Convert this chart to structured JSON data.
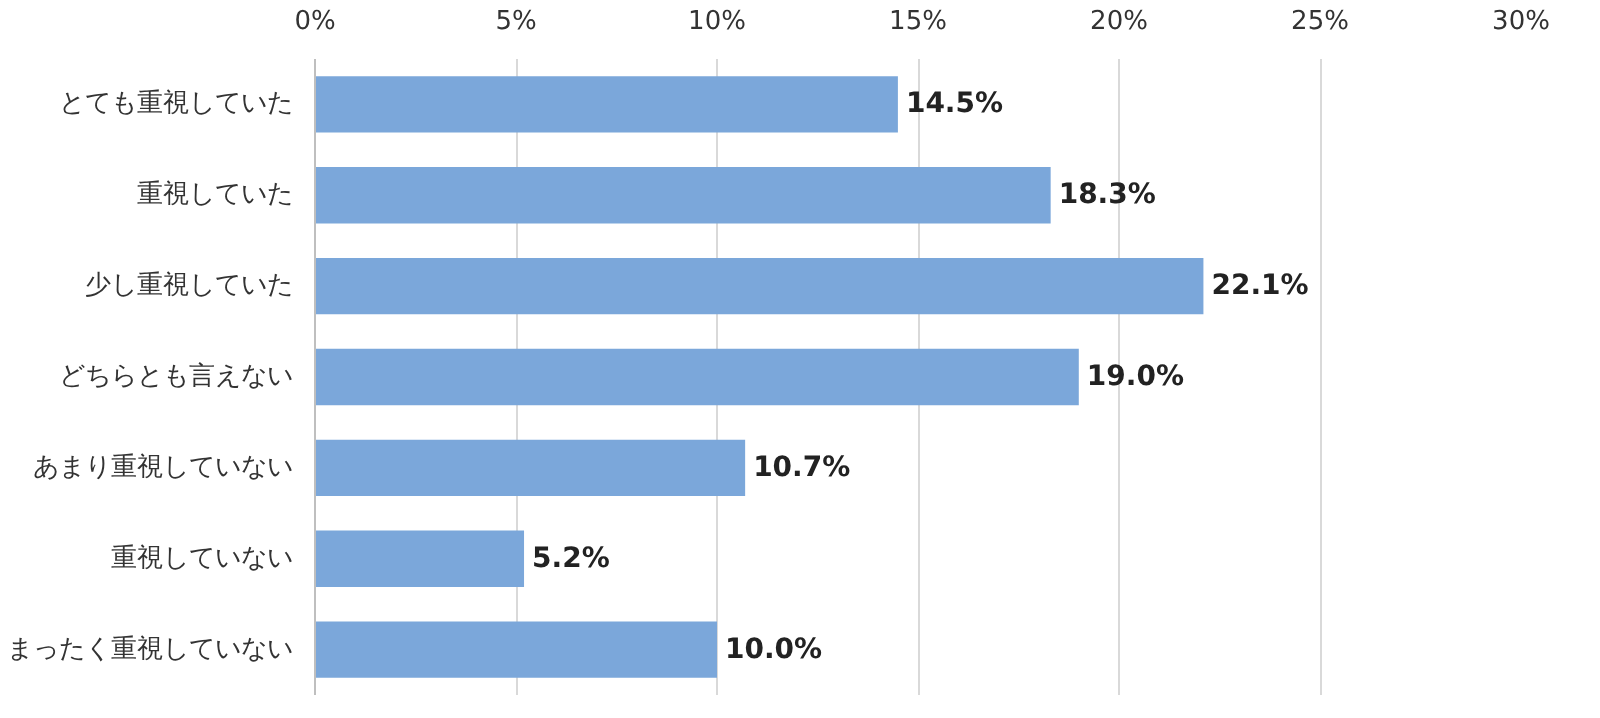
{
  "chart_data": {
    "type": "bar",
    "orientation": "horizontal",
    "categories": [
      "とても重視していた",
      "重視していた",
      "少し重視していた",
      "どちらとも言えない",
      "あまり重視していない",
      "重視していない",
      "まったく重視していない"
    ],
    "values": [
      14.5,
      18.3,
      22.1,
      19.0,
      10.7,
      5.2,
      10.0
    ],
    "value_labels": [
      "14.5%",
      "18.3%",
      "22.1%",
      "19.0%",
      "10.7%",
      "5.2%",
      "10.0%"
    ],
    "color": "#7ba7da",
    "xlim": [
      0,
      30
    ],
    "xticks": [
      {
        "value": 0,
        "label": "0%"
      },
      {
        "value": 5,
        "label": "5%"
      },
      {
        "value": 10,
        "label": "10%"
      },
      {
        "value": 15,
        "label": "15%"
      },
      {
        "value": 20,
        "label": "20%"
      },
      {
        "value": 25,
        "label": "25%"
      },
      {
        "value": 30,
        "label": "30%"
      }
    ],
    "grid": "x"
  }
}
